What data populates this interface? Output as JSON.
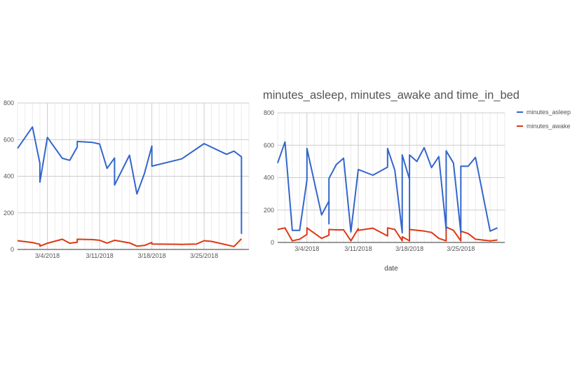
{
  "chart_data": [
    {
      "type": "line",
      "title": "",
      "xlabel": "",
      "ylabel": "",
      "ylim": [
        0,
        800
      ],
      "yticks": [
        0,
        200,
        400,
        600,
        800
      ],
      "xlim": [
        "2018-02-28",
        "2018-03-31"
      ],
      "xticks": [
        {
          "date": "2018-03-04",
          "label": "3/4/2018"
        },
        {
          "date": "2018-03-11",
          "label": "3/11/2018"
        },
        {
          "date": "2018-03-18",
          "label": "3/18/2018"
        },
        {
          "date": "2018-03-25",
          "label": "3/25/2018"
        }
      ],
      "grid": true,
      "series": [
        {
          "color": "#3366cc",
          "points": [
            [
              "2018-02-28",
              552
            ],
            [
              "2018-03-02",
              669
            ],
            [
              "2018-03-03",
              470
            ],
            [
              "2018-03-03",
              368
            ],
            [
              "2018-03-04",
              612
            ],
            [
              "2018-03-06",
              498
            ],
            [
              "2018-03-07",
              487
            ],
            [
              "2018-03-08",
              560
            ],
            [
              "2018-03-08",
              590
            ],
            [
              "2018-03-10",
              585
            ],
            [
              "2018-03-11",
              576
            ],
            [
              "2018-03-12",
              443
            ],
            [
              "2018-03-13",
              500
            ],
            [
              "2018-03-13",
              352
            ],
            [
              "2018-03-15",
              515
            ],
            [
              "2018-03-16",
              303
            ],
            [
              "2018-03-17",
              415
            ],
            [
              "2018-03-18",
              565
            ],
            [
              "2018-03-18",
              455
            ],
            [
              "2018-03-22",
              495
            ],
            [
              "2018-03-25",
              578
            ],
            [
              "2018-03-28",
              520
            ],
            [
              "2018-03-29",
              537
            ],
            [
              "2018-03-30",
              506
            ],
            [
              "2018-03-30",
              85
            ]
          ]
        },
        {
          "color": "#dc3912",
          "points": [
            [
              "2018-02-28",
              48
            ],
            [
              "2018-03-02",
              38
            ],
            [
              "2018-03-03",
              28
            ],
            [
              "2018-03-03",
              18
            ],
            [
              "2018-03-04",
              34
            ],
            [
              "2018-03-06",
              56
            ],
            [
              "2018-03-07",
              34
            ],
            [
              "2018-03-08",
              40
            ],
            [
              "2018-03-08",
              56
            ],
            [
              "2018-03-10",
              54
            ],
            [
              "2018-03-11",
              50
            ],
            [
              "2018-03-12",
              35
            ],
            [
              "2018-03-13",
              50
            ],
            [
              "2018-03-15",
              36
            ],
            [
              "2018-03-16",
              18
            ],
            [
              "2018-03-17",
              22
            ],
            [
              "2018-03-18",
              38
            ],
            [
              "2018-03-18",
              30
            ],
            [
              "2018-03-22",
              28
            ],
            [
              "2018-03-24",
              30
            ],
            [
              "2018-03-25",
              48
            ],
            [
              "2018-03-26",
              44
            ],
            [
              "2018-03-29",
              16
            ],
            [
              "2018-03-30",
              58
            ]
          ]
        }
      ]
    },
    {
      "type": "line",
      "title": "minutes_asleep, minutes_awake and time_in_bed",
      "xlabel": "date",
      "ylabel": "",
      "ylim": [
        0,
        800
      ],
      "yticks": [
        0,
        200,
        400,
        600,
        800
      ],
      "xlim": [
        "2018-02-28",
        "2018-03-31"
      ],
      "xticks": [
        {
          "date": "2018-03-04",
          "label": "3/4/2018"
        },
        {
          "date": "2018-03-11",
          "label": "3/11/2018"
        },
        {
          "date": "2018-03-18",
          "label": "3/18/2018"
        },
        {
          "date": "2018-03-25",
          "label": "3/25/2018"
        }
      ],
      "grid": true,
      "legend": "right",
      "series": [
        {
          "name": "minutes_asleep",
          "color": "#3366cc",
          "points": [
            [
              "2018-02-28",
              490
            ],
            [
              "2018-03-01",
              620
            ],
            [
              "2018-03-02",
              75
            ],
            [
              "2018-03-03",
              75
            ],
            [
              "2018-03-04",
              385
            ],
            [
              "2018-03-04",
              580
            ],
            [
              "2018-03-06",
              170
            ],
            [
              "2018-03-07",
              255
            ],
            [
              "2018-03-07",
              115
            ],
            [
              "2018-03-07",
              395
            ],
            [
              "2018-03-08",
              480
            ],
            [
              "2018-03-09",
              520
            ],
            [
              "2018-03-10",
              65
            ],
            [
              "2018-03-11",
              450
            ],
            [
              "2018-03-13",
              415
            ],
            [
              "2018-03-15",
              465
            ],
            [
              "2018-03-15",
              580
            ],
            [
              "2018-03-16",
              445
            ],
            [
              "2018-03-17",
              60
            ],
            [
              "2018-03-17",
              540
            ],
            [
              "2018-03-18",
              390
            ],
            [
              "2018-03-18",
              80
            ],
            [
              "2018-03-18",
              540
            ],
            [
              "2018-03-19",
              500
            ],
            [
              "2018-03-20",
              585
            ],
            [
              "2018-03-21",
              462
            ],
            [
              "2018-03-22",
              530
            ],
            [
              "2018-03-23",
              80
            ],
            [
              "2018-03-23",
              565
            ],
            [
              "2018-03-24",
              490
            ],
            [
              "2018-03-25",
              60
            ],
            [
              "2018-03-25",
              470
            ],
            [
              "2018-03-26",
              470
            ],
            [
              "2018-03-27",
              525
            ],
            [
              "2018-03-29",
              70
            ],
            [
              "2018-03-30",
              90
            ]
          ]
        },
        {
          "name": "minutes_awake",
          "color": "#dc3912",
          "points": [
            [
              "2018-02-28",
              80
            ],
            [
              "2018-03-01",
              90
            ],
            [
              "2018-03-02",
              10
            ],
            [
              "2018-03-03",
              20
            ],
            [
              "2018-03-04",
              50
            ],
            [
              "2018-03-04",
              90
            ],
            [
              "2018-03-06",
              25
            ],
            [
              "2018-03-07",
              45
            ],
            [
              "2018-03-07",
              80
            ],
            [
              "2018-03-08",
              78
            ],
            [
              "2018-03-09",
              78
            ],
            [
              "2018-03-10",
              10
            ],
            [
              "2018-03-11",
              85
            ],
            [
              "2018-03-11",
              75
            ],
            [
              "2018-03-13",
              88
            ],
            [
              "2018-03-15",
              40
            ],
            [
              "2018-03-15",
              90
            ],
            [
              "2018-03-16",
              80
            ],
            [
              "2018-03-17",
              10
            ],
            [
              "2018-03-17",
              35
            ],
            [
              "2018-03-18",
              10
            ],
            [
              "2018-03-18",
              80
            ],
            [
              "2018-03-20",
              70
            ],
            [
              "2018-03-21",
              62
            ],
            [
              "2018-03-22",
              25
            ],
            [
              "2018-03-23",
              10
            ],
            [
              "2018-03-23",
              95
            ],
            [
              "2018-03-24",
              75
            ],
            [
              "2018-03-25",
              10
            ],
            [
              "2018-03-25",
              70
            ],
            [
              "2018-03-26",
              55
            ],
            [
              "2018-03-27",
              20
            ],
            [
              "2018-03-29",
              10
            ],
            [
              "2018-03-30",
              15
            ]
          ]
        }
      ]
    }
  ]
}
